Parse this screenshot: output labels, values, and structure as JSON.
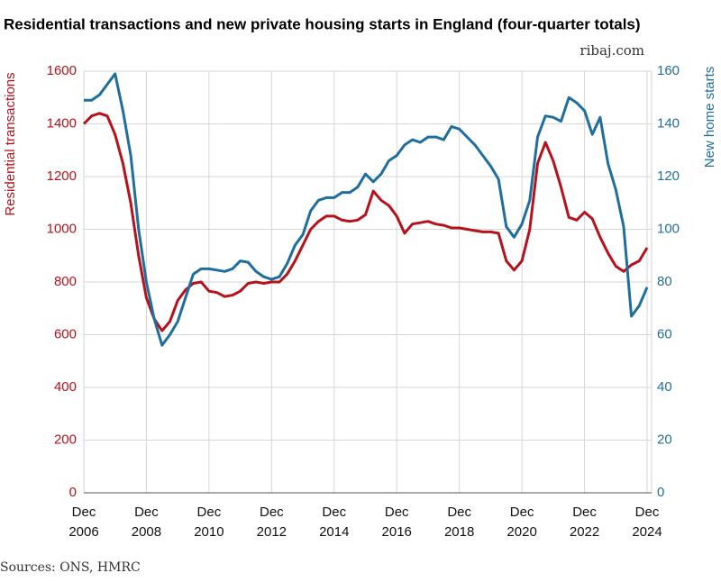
{
  "chart_data": {
    "type": "line",
    "title": "Residential transactions and new private housing starts in England (four-quarter totals)",
    "subtitle": "ribaj.com",
    "source": "Sources: ONS, HMRC",
    "ylabel": "Residential transactions",
    "y2label": "New home starts",
    "categories": [
      "Dec 2006",
      null,
      null,
      null,
      null,
      null,
      null,
      null,
      "Dec 2008",
      null,
      null,
      null,
      null,
      null,
      null,
      null,
      "Dec 2010",
      null,
      null,
      null,
      null,
      null,
      null,
      null,
      "Dec 2012",
      null,
      null,
      null,
      null,
      null,
      null,
      null,
      "Dec 2014",
      null,
      null,
      null,
      null,
      null,
      null,
      null,
      "Dec 2016",
      null,
      null,
      null,
      null,
      null,
      null,
      null,
      "Dec 2018",
      null,
      null,
      null,
      null,
      null,
      null,
      null,
      "Dec 2020",
      null,
      null,
      null,
      null,
      null,
      null,
      null,
      "Dec 2022",
      null,
      null,
      null,
      null,
      null,
      null,
      null,
      "Dec 2024"
    ],
    "series": [
      {
        "name": "Residential transactions",
        "color": "#b5121b",
        "axis": "y",
        "values": [
          1400,
          1430,
          1440,
          1430,
          1360,
          1250,
          1100,
          900,
          740,
          660,
          615,
          650,
          730,
          770,
          795,
          800,
          765,
          760,
          745,
          750,
          765,
          795,
          800,
          795,
          800,
          800,
          830,
          880,
          940,
          1000,
          1030,
          1050,
          1050,
          1035,
          1030,
          1035,
          1055,
          1145,
          1110,
          1090,
          1050,
          985,
          1020,
          1025,
          1030,
          1020,
          1015,
          1005,
          1005,
          1000,
          995,
          990,
          990,
          985,
          880,
          845,
          880,
          1000,
          1250,
          1330,
          1260,
          1160,
          1045,
          1035,
          1065,
          1040,
          970,
          910,
          860,
          840,
          865,
          880,
          930
        ]
      },
      {
        "name": "New home starts",
        "color": "#1f6e9e",
        "axis": "y2",
        "values": [
          149,
          149,
          151,
          155,
          159,
          145,
          128,
          100,
          80,
          66,
          56,
          60,
          65,
          74,
          83,
          85,
          85,
          84.5,
          84,
          85,
          88,
          87.5,
          84,
          82,
          81,
          82,
          87,
          94,
          98,
          107,
          111,
          112,
          112,
          114,
          114,
          116,
          121,
          118,
          121,
          126,
          128,
          132,
          134,
          133,
          135,
          135,
          134,
          139,
          138,
          135,
          132,
          128,
          124,
          119,
          101,
          97,
          102,
          111,
          135,
          143,
          142.5,
          141,
          150,
          148,
          145,
          136,
          142.5,
          125,
          115,
          101,
          67,
          71,
          78
        ]
      }
    ],
    "ylim": [
      0,
      1600
    ],
    "yticks": [
      0,
      200,
      400,
      600,
      800,
      1000,
      1200,
      1400,
      1600
    ],
    "y2lim": [
      0,
      160
    ],
    "y2ticks": [
      0,
      20,
      40,
      60,
      80,
      100,
      120,
      140,
      160
    ],
    "grid": true
  }
}
